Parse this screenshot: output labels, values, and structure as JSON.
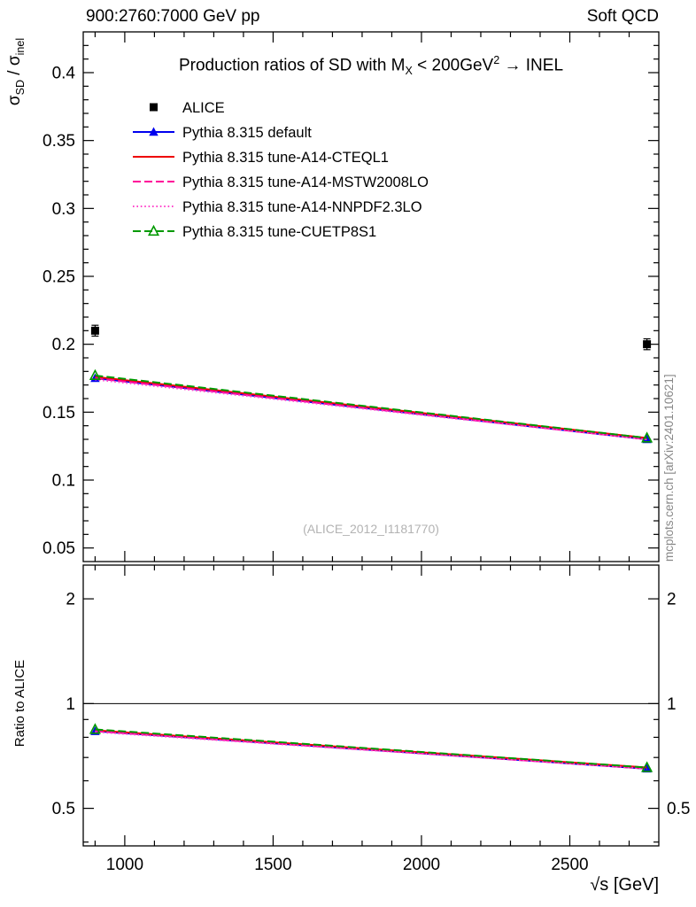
{
  "header": {
    "left_title": "900:2760:7000 GeV pp",
    "right_title": "Soft QCD"
  },
  "plot_title": {
    "prefix": "Production ratios of SD with M",
    "sub": "X",
    "mid": " < 200GeV",
    "sup": "2",
    "suffix": " → INEL"
  },
  "y_axis_label": {
    "p1": "σ",
    "s1": "SD",
    "p2": " / ",
    "p3": "σ",
    "s2": "inel"
  },
  "ratio_axis_label": "Ratio to ALICE",
  "x_axis_label": "√s [GeV]",
  "watermark": "(ALICE_2012_I1181770)",
  "side_note": "mcplots.cern.ch [arXiv:2401.10621]",
  "colors": {
    "alice": "#000000",
    "pythia_default": "#0000ee",
    "cteql1": "#ee0000",
    "mstw2008lo": "#ff0099",
    "nnpdf23lo": "#ff44cc",
    "cuetp8s1": "#009900"
  },
  "chart_data": [
    {
      "name": "main",
      "type": "line",
      "title": "Production ratios of SD with M_X < 200GeV^2 → INEL",
      "ylabel": "σ_SD / σ_inel",
      "xlabel": "",
      "xlim": [
        860,
        2800
      ],
      "ylim": [
        0.04,
        0.43
      ],
      "yscale": "linear",
      "x_ticks": [
        1000,
        1500,
        2000,
        2500
      ],
      "x_minor_step": 100,
      "x_tick_labels": false,
      "y_ticks": [
        0.05,
        0.1,
        0.15,
        0.2,
        0.25,
        0.3,
        0.35,
        0.4
      ],
      "y_minor_step": 0.01,
      "y_tick_labels_right": false,
      "legend_position": "top-left",
      "grid": false,
      "series": [
        {
          "name": "ALICE",
          "color": "#000000",
          "line": "none",
          "marker": "square-filled",
          "yerr": 0.004,
          "x": [
            900,
            2760
          ],
          "y": [
            0.21,
            0.2
          ]
        },
        {
          "name": "Pythia 8.315 default",
          "color": "#0000ee",
          "line": "solid",
          "marker": "triangle-filled",
          "x": [
            900,
            2760
          ],
          "y": [
            0.175,
            0.13
          ]
        },
        {
          "name": "Pythia 8.315 tune-A14-CTEQL1",
          "color": "#ee0000",
          "line": "solid",
          "marker": "none",
          "x": [
            900,
            2760
          ],
          "y": [
            0.176,
            0.131
          ]
        },
        {
          "name": "Pythia 8.315 tune-A14-MSTW2008LO",
          "color": "#ff0099",
          "line": "dashed",
          "marker": "none",
          "x": [
            900,
            2760
          ],
          "y": [
            0.175,
            0.13
          ]
        },
        {
          "name": "Pythia 8.315 tune-A14-NNPDF2.3LO",
          "color": "#ff44cc",
          "line": "dotted",
          "marker": "none",
          "x": [
            900,
            2760
          ],
          "y": [
            0.174,
            0.13
          ]
        },
        {
          "name": "Pythia 8.315 tune-CUETP8S1",
          "color": "#009900",
          "line": "dashed",
          "marker": "triangle-open",
          "x": [
            900,
            2760
          ],
          "y": [
            0.177,
            0.131
          ]
        }
      ]
    },
    {
      "name": "ratio",
      "type": "line",
      "title": "",
      "ylabel": "Ratio to ALICE",
      "xlabel": "√s [GeV]",
      "xlim": [
        860,
        2800
      ],
      "ylim": [
        0.39,
        2.5
      ],
      "yscale": "log",
      "x_ticks": [
        1000,
        1500,
        2000,
        2500
      ],
      "x_minor_step": 100,
      "x_tick_labels": true,
      "y_ticks": [
        0.5,
        1,
        2
      ],
      "y_minor_ticks": [
        0.4,
        0.6,
        0.7,
        0.8,
        0.9
      ],
      "y_tick_labels_right": true,
      "reference_line": 1,
      "grid": false,
      "series": [
        {
          "name": "Pythia 8.315 default",
          "color": "#0000ee",
          "line": "solid",
          "marker": "triangle-filled",
          "x": [
            900,
            2760
          ],
          "y": [
            0.833,
            0.65
          ]
        },
        {
          "name": "Pythia 8.315 tune-A14-CTEQL1",
          "color": "#ee0000",
          "line": "solid",
          "marker": "none",
          "x": [
            900,
            2760
          ],
          "y": [
            0.838,
            0.655
          ]
        },
        {
          "name": "Pythia 8.315 tune-A14-MSTW2008LO",
          "color": "#ff0099",
          "line": "dashed",
          "marker": "none",
          "x": [
            900,
            2760
          ],
          "y": [
            0.833,
            0.65
          ]
        },
        {
          "name": "Pythia 8.315 tune-A14-NNPDF2.3LO",
          "color": "#ff44cc",
          "line": "dotted",
          "marker": "none",
          "x": [
            900,
            2760
          ],
          "y": [
            0.829,
            0.65
          ]
        },
        {
          "name": "Pythia 8.315 tune-CUETP8S1",
          "color": "#009900",
          "line": "dashed",
          "marker": "triangle-open",
          "x": [
            900,
            2760
          ],
          "y": [
            0.843,
            0.655
          ]
        }
      ]
    }
  ]
}
